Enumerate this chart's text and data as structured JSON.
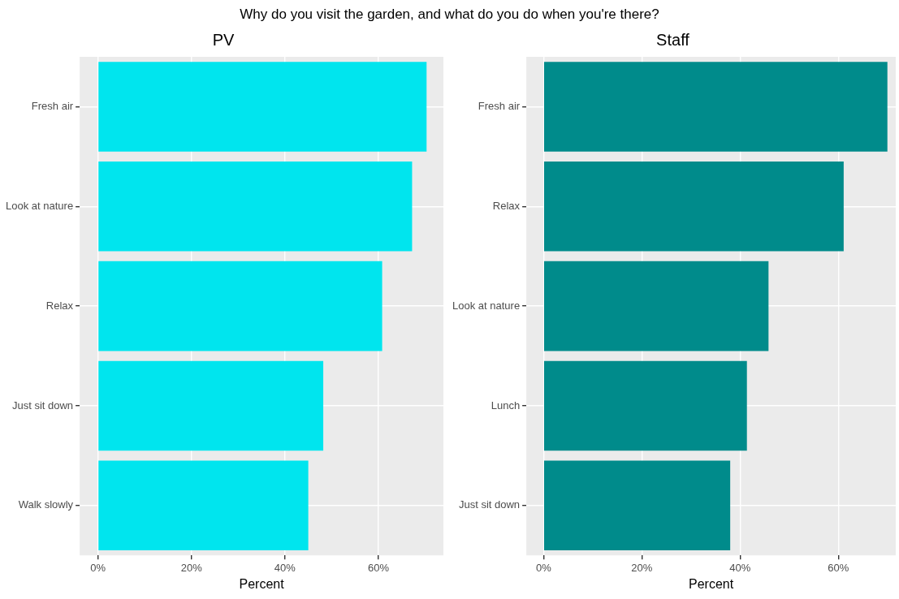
{
  "chart_data": [
    {
      "type": "bar",
      "orientation": "horizontal",
      "title": "Why do you visit the garden, and what do you do when you're there?",
      "subtitle": "PV",
      "xlabel": "Percent",
      "categories": [
        "Fresh air",
        "Look at nature",
        "Relax",
        "Just sit down",
        "Walk slowly"
      ],
      "values": [
        70.3,
        67.2,
        60.8,
        48.2,
        45.0
      ],
      "color": "#00e5ee",
      "xlim": [
        -3.9,
        73.9
      ],
      "xticks": [
        {
          "value": 0,
          "label": "0%"
        },
        {
          "value": 20,
          "label": "20%"
        },
        {
          "value": 40,
          "label": "40%"
        },
        {
          "value": 60,
          "label": "60%"
        }
      ],
      "grid": true,
      "legend": false
    },
    {
      "type": "bar",
      "orientation": "horizontal",
      "subtitle": "Staff",
      "xlabel": "Percent",
      "categories": [
        "Fresh air",
        "Relax",
        "Look at nature",
        "Lunch",
        "Just sit down"
      ],
      "values": [
        70.0,
        61.1,
        45.8,
        41.4,
        38.0
      ],
      "color": "#008b8b",
      "xlim": [
        -3.5,
        71.7
      ],
      "xticks": [
        {
          "value": 0,
          "label": "0%"
        },
        {
          "value": 20,
          "label": "20%"
        },
        {
          "value": 40,
          "label": "40%"
        },
        {
          "value": 60,
          "label": "60%"
        }
      ],
      "grid": true,
      "legend": false
    }
  ]
}
